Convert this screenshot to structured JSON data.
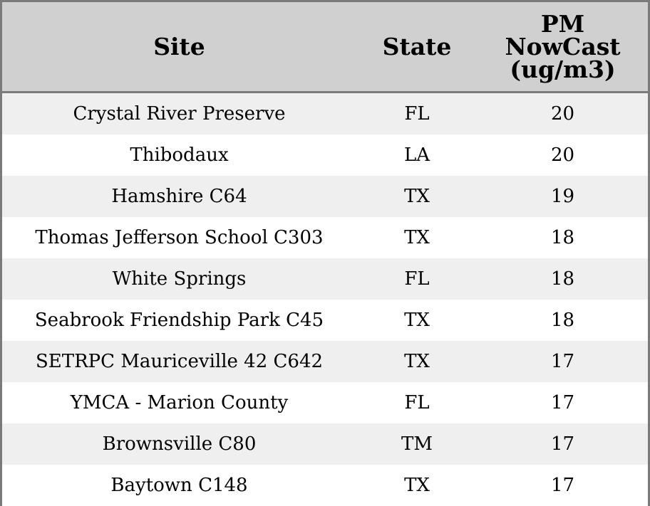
{
  "chart_data": {
    "type": "table",
    "columns": [
      "Site",
      "State",
      "PM NowCast (ug/m3)"
    ],
    "header_lines": {
      "pm": [
        "PM",
        "NowCast",
        "(ug/m3)"
      ]
    },
    "rows": [
      {
        "site": "Crystal River Preserve",
        "state": "FL",
        "pm": "20"
      },
      {
        "site": "Thibodaux",
        "state": "LA",
        "pm": "20"
      },
      {
        "site": "Hamshire C64",
        "state": "TX",
        "pm": "19"
      },
      {
        "site": "Thomas Jefferson School C303",
        "state": "TX",
        "pm": "18"
      },
      {
        "site": "White Springs",
        "state": "FL",
        "pm": "18"
      },
      {
        "site": "Seabrook Friendship Park C45",
        "state": "TX",
        "pm": "18"
      },
      {
        "site": "SETRPC Mauriceville 42 C642",
        "state": "TX",
        "pm": "17"
      },
      {
        "site": "YMCA - Marion County",
        "state": "FL",
        "pm": "17"
      },
      {
        "site": "Brownsville C80",
        "state": "TM",
        "pm": "17"
      },
      {
        "site": "Baytown C148",
        "state": "TX",
        "pm": "17"
      }
    ]
  },
  "colors": {
    "header_bg": "#d0d0d0",
    "row_odd_bg": "#efefef",
    "row_even_bg": "#ffffff",
    "border": "#7a7a7a"
  }
}
